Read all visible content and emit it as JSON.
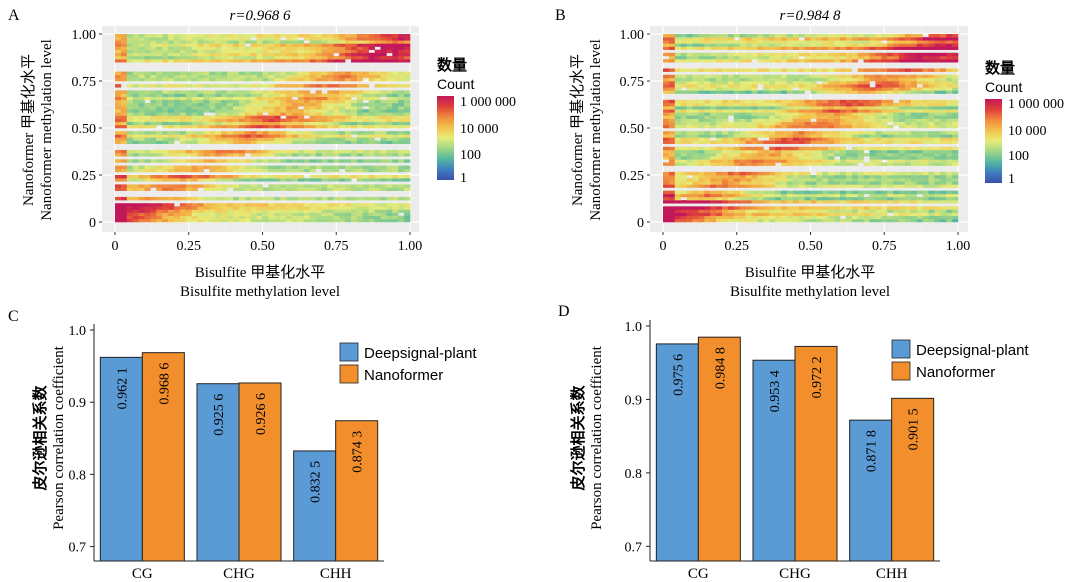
{
  "panels": {
    "A": {
      "letter": "A",
      "r_label": "r=0.968 6",
      "xlabel_cn": "Bisulfite 甲基化水平",
      "xlabel_en": "Bisulfite methylation level",
      "ylabel_cn": "Nanoformer 甲基化水平",
      "ylabel_en": "Nanoformer methylation level"
    },
    "B": {
      "letter": "B",
      "r_label": "r=0.984 8",
      "xlabel_cn": "Bisulfite 甲基化水平",
      "xlabel_en": "Bisulfite methylation level",
      "ylabel_cn": "Nanoformer 甲基化水平",
      "ylabel_en": "Nanoformer methylation level"
    },
    "C": {
      "letter": "C",
      "ylabel_cn": "皮尔逊相关系数",
      "ylabel_en": "Pearson correlation coefficient"
    },
    "D": {
      "letter": "D",
      "ylabel_cn": "皮尔逊相关系数",
      "ylabel_en": "Pearson correlation coefficient"
    }
  },
  "heat_ticks": [
    "0",
    "0.25",
    "0.50",
    "0.75",
    "1.00"
  ],
  "colorbar": {
    "title_cn": "数量",
    "title_en": "Count",
    "labels": [
      "1 000 000",
      "10 000",
      "100",
      "1"
    ],
    "colors": [
      "#c2185b",
      "#e0413a",
      "#f08a3e",
      "#f3c24d",
      "#e6ec7a",
      "#9fd686",
      "#54b7a0",
      "#3f7fc0",
      "#3b4fa8"
    ]
  },
  "colors": {
    "deepsignal": "#5b9bd5",
    "nanoformer": "#f28e2b"
  },
  "chart_data": [
    {
      "panel": "A",
      "type": "heatmap",
      "title": "r=0.968 6",
      "xlabel": "Bisulfite methylation level",
      "ylabel": "Nanoformer methylation level",
      "xlim": [
        0,
        1
      ],
      "ylim": [
        0,
        1
      ],
      "x_ticks": [
        0,
        0.25,
        0.5,
        0.75,
        1.0
      ],
      "y_ticks": [
        0,
        0.25,
        0.5,
        0.75,
        1.0
      ],
      "legend": "right",
      "color_scale": "log",
      "count_range": [
        1,
        1000000
      ],
      "correlation_r": 0.9686
    },
    {
      "panel": "B",
      "type": "heatmap",
      "title": "r=0.984 8",
      "xlabel": "Bisulfite methylation level",
      "ylabel": "Nanoformer methylation level",
      "xlim": [
        0,
        1
      ],
      "ylim": [
        0,
        1
      ],
      "x_ticks": [
        0,
        0.25,
        0.5,
        0.75,
        1.0
      ],
      "y_ticks": [
        0,
        0.25,
        0.5,
        0.75,
        1.0
      ],
      "legend": "right",
      "color_scale": "log",
      "count_range": [
        1,
        1000000
      ],
      "correlation_r": 0.9848
    },
    {
      "panel": "C",
      "type": "bar",
      "categories": [
        "CG",
        "CHG",
        "CHH"
      ],
      "series": [
        {
          "name": "Deepsignal-plant",
          "values": [
            0.9621,
            0.9256,
            0.8325
          ],
          "labels": [
            "0.962 1",
            "0.925 6",
            "0.832 5"
          ]
        },
        {
          "name": "Nanoformer",
          "values": [
            0.9686,
            0.9266,
            0.8743
          ],
          "labels": [
            "0.968 6",
            "0.926 6",
            "0.874 3"
          ]
        }
      ],
      "ylabel": "Pearson correlation coefficient",
      "ylim": [
        0.68,
        1.0
      ],
      "y_ticks": [
        "0.7",
        "0.8",
        "0.9",
        "1.0"
      ],
      "legend": "top-right"
    },
    {
      "panel": "D",
      "type": "bar",
      "categories": [
        "CG",
        "CHG",
        "CHH"
      ],
      "series": [
        {
          "name": "Deepsignal-plant",
          "values": [
            0.9756,
            0.9534,
            0.8718
          ],
          "labels": [
            "0.975 6",
            "0.953 4",
            "0.871 8"
          ]
        },
        {
          "name": "Nanoformer",
          "values": [
            0.9848,
            0.9722,
            0.9015
          ],
          "labels": [
            "0.984 8",
            "0.972 2",
            "0.901 5"
          ]
        }
      ],
      "ylabel": "Pearson correlation coefficient",
      "ylim": [
        0.68,
        1.0
      ],
      "y_ticks": [
        "0.7",
        "0.8",
        "0.9",
        "1.0"
      ],
      "legend": "top-right"
    }
  ]
}
